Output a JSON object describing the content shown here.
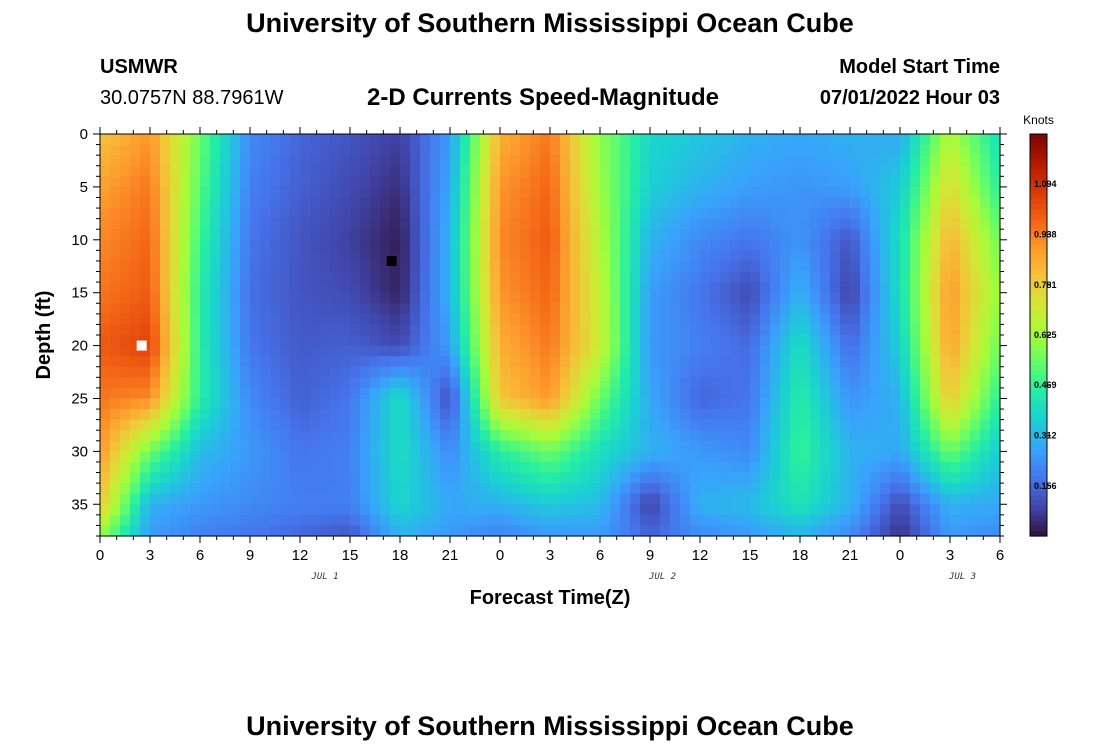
{
  "header": {
    "title": "University of Southern Mississippi Ocean Cube",
    "station": "USMWR",
    "coords": "30.0757N  88.7961W",
    "subtitle": "2-D Currents Speed-Magnitude",
    "model_start_label": "Model Start Time",
    "model_start_value": "07/01/2022 Hour 03"
  },
  "footer": {
    "title": "University of Southern Mississippi Ocean Cube"
  },
  "chart_data": {
    "type": "heatmap",
    "xlabel": "Forecast Time(Z)",
    "ylabel": "Depth (ft)",
    "x_ticks": [
      "0",
      "3",
      "6",
      "9",
      "12",
      "15",
      "18",
      "21",
      "0",
      "3",
      "6",
      "9",
      "12",
      "15",
      "18",
      "21",
      "0",
      "3",
      "6"
    ],
    "y_ticks": [
      "0",
      "5",
      "10",
      "15",
      "20",
      "25",
      "30",
      "35"
    ],
    "ylim": [
      0,
      38
    ],
    "y_inverted": true,
    "date_labels": [
      "JUL 1",
      "JUL 2",
      "JUL 3"
    ],
    "colorbar": {
      "unit": "Knots",
      "min": 0,
      "max": 1.25,
      "ticks": [
        "1.094",
        "0.938",
        "0.781",
        "0.625",
        "0.469",
        "0.312",
        "0.156"
      ],
      "tick_values": [
        1.094,
        0.938,
        0.781,
        0.625,
        0.469,
        0.312,
        0.156
      ],
      "colors": [
        "#30123b",
        "#4145ab",
        "#4675ed",
        "#39a2fc",
        "#1bcfd4",
        "#24eca6",
        "#61fc6c",
        "#a4fc3b",
        "#d1e834",
        "#f3c63a",
        "#fe9b2d",
        "#f36315",
        "#d93806",
        "#b11901",
        "#7a0402"
      ]
    },
    "hours": [
      0,
      3,
      6,
      9,
      12,
      15,
      18,
      21,
      24,
      27,
      30,
      33,
      36,
      39,
      42,
      45,
      48,
      51,
      54
    ],
    "depths": [
      0,
      5,
      10,
      15,
      20,
      25,
      30,
      35,
      38
    ],
    "speed_knots": [
      [
        0.8,
        0.9,
        0.55,
        0.22,
        0.15,
        0.12,
        0.08,
        0.25,
        0.85,
        0.95,
        0.6,
        0.38,
        0.34,
        0.3,
        0.28,
        0.3,
        0.28,
        0.65,
        0.4
      ],
      [
        0.88,
        0.95,
        0.52,
        0.2,
        0.14,
        0.1,
        0.05,
        0.28,
        0.9,
        0.98,
        0.62,
        0.36,
        0.3,
        0.26,
        0.24,
        0.26,
        0.35,
        0.75,
        0.45
      ],
      [
        0.92,
        0.98,
        0.48,
        0.18,
        0.12,
        0.08,
        0.02,
        0.3,
        0.92,
        1.0,
        0.65,
        0.3,
        0.22,
        0.18,
        0.24,
        0.12,
        0.4,
        0.85,
        0.55
      ],
      [
        0.95,
        1.0,
        0.45,
        0.17,
        0.12,
        0.1,
        0.03,
        0.3,
        0.9,
        0.98,
        0.68,
        0.26,
        0.18,
        0.1,
        0.3,
        0.08,
        0.4,
        0.9,
        0.6
      ],
      [
        1.0,
        1.05,
        0.45,
        0.18,
        0.13,
        0.14,
        0.1,
        0.26,
        0.85,
        0.95,
        0.7,
        0.25,
        0.2,
        0.16,
        0.4,
        0.16,
        0.36,
        0.88,
        0.55
      ],
      [
        0.95,
        0.92,
        0.45,
        0.22,
        0.14,
        0.18,
        0.4,
        0.1,
        0.8,
        0.9,
        0.55,
        0.28,
        0.15,
        0.18,
        0.45,
        0.24,
        0.3,
        0.8,
        0.45
      ],
      [
        0.9,
        0.55,
        0.32,
        0.25,
        0.18,
        0.2,
        0.4,
        0.22,
        0.45,
        0.55,
        0.4,
        0.3,
        0.25,
        0.22,
        0.48,
        0.3,
        0.28,
        0.55,
        0.35
      ],
      [
        0.8,
        0.3,
        0.25,
        0.22,
        0.2,
        0.2,
        0.38,
        0.28,
        0.3,
        0.35,
        0.32,
        0.08,
        0.3,
        0.32,
        0.42,
        0.3,
        0.1,
        0.3,
        0.28
      ],
      [
        0.6,
        0.25,
        0.2,
        0.18,
        0.15,
        0.12,
        0.3,
        0.25,
        0.2,
        0.25,
        0.25,
        0.15,
        0.22,
        0.25,
        0.3,
        0.22,
        0.05,
        0.25,
        0.22
      ]
    ],
    "markers": [
      {
        "hour": 2.5,
        "depth": 20,
        "color": "#ffffff"
      },
      {
        "hour": 17.5,
        "depth": 12,
        "color": "#000000"
      }
    ]
  }
}
